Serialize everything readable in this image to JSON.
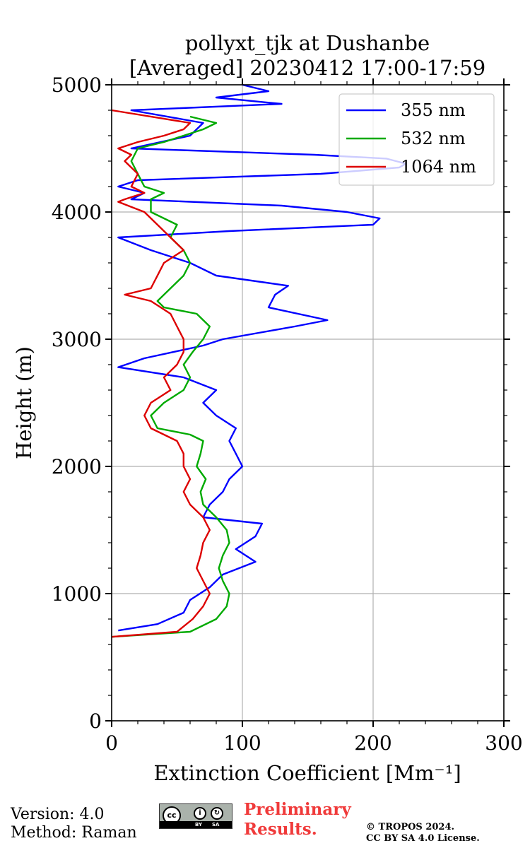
{
  "chart_data": {
    "type": "line",
    "title_line1": "pollyxt_tjk at Dushanbe",
    "title_line2": "[Averaged] 20230412 17:00-17:59",
    "xlabel": "Extinction Coefficient [Mm⁻¹]",
    "ylabel": "Height (m)",
    "xlim": [
      0,
      300
    ],
    "ylim": [
      0,
      5000
    ],
    "xticks": [
      0,
      100,
      200,
      300
    ],
    "yticks": [
      0,
      1000,
      2000,
      3000,
      4000,
      5000
    ],
    "grid": true,
    "legend_position": "top-right",
    "series": [
      {
        "name": "355 nm",
        "color": "#0000ff",
        "heights": [
          710,
          760,
          850,
          950,
          1050,
          1150,
          1250,
          1350,
          1450,
          1550,
          1600,
          1700,
          1800,
          1900,
          2000,
          2100,
          2200,
          2300,
          2400,
          2500,
          2600,
          2700,
          2780,
          2850,
          2950,
          3000,
          3100,
          3150,
          3250,
          3350,
          3420,
          3500,
          3600,
          3700,
          3800,
          3850,
          3900,
          3950,
          4000,
          4050,
          4100,
          4150,
          4200,
          4250,
          4300,
          4350,
          4380,
          4420,
          4450,
          4500,
          4600,
          4700,
          4800,
          4850,
          4900,
          4950,
          5000
        ],
        "values": [
          5,
          35,
          55,
          60,
          75,
          85,
          110,
          95,
          110,
          115,
          70,
          75,
          85,
          90,
          100,
          95,
          90,
          95,
          80,
          70,
          80,
          55,
          5,
          25,
          70,
          85,
          140,
          165,
          120,
          125,
          135,
          80,
          60,
          30,
          5,
          90,
          200,
          205,
          180,
          130,
          15,
          25,
          5,
          20,
          160,
          220,
          225,
          210,
          155,
          15,
          60,
          70,
          15,
          130,
          80,
          120,
          100
        ]
      },
      {
        "name": "532 nm",
        "color": "#00aa00",
        "heights": [
          660,
          700,
          800,
          900,
          1000,
          1100,
          1200,
          1300,
          1400,
          1500,
          1600,
          1700,
          1800,
          1900,
          2000,
          2100,
          2200,
          2250,
          2300,
          2400,
          2500,
          2600,
          2700,
          2800,
          2900,
          3000,
          3100,
          3200,
          3250,
          3300,
          3400,
          3500,
          3600,
          3700,
          3800,
          3900,
          4000,
          4100,
          4150,
          4200,
          4300,
          4400,
          4500,
          4550,
          4600,
          4650,
          4700,
          4750
        ],
        "values": [
          0,
          60,
          80,
          88,
          90,
          85,
          82,
          85,
          90,
          88,
          80,
          70,
          68,
          72,
          65,
          68,
          70,
          60,
          35,
          30,
          40,
          55,
          60,
          55,
          62,
          70,
          75,
          65,
          40,
          35,
          45,
          55,
          60,
          55,
          45,
          50,
          30,
          30,
          40,
          25,
          20,
          15,
          20,
          40,
          55,
          70,
          80,
          60
        ]
      },
      {
        "name": "1064 nm",
        "color": "#dd0000",
        "heights": [
          660,
          700,
          800,
          900,
          1000,
          1100,
          1200,
          1300,
          1400,
          1500,
          1600,
          1700,
          1800,
          1900,
          2000,
          2100,
          2200,
          2300,
          2400,
          2500,
          2600,
          2700,
          2800,
          2900,
          3000,
          3100,
          3200,
          3300,
          3350,
          3400,
          3500,
          3600,
          3700,
          3800,
          3900,
          4000,
          4080,
          4100,
          4150,
          4200,
          4300,
          4400,
          4450,
          4500,
          4550,
          4600,
          4650,
          4700,
          4800
        ],
        "values": [
          0,
          50,
          62,
          70,
          75,
          70,
          65,
          68,
          70,
          75,
          70,
          60,
          55,
          60,
          55,
          55,
          50,
          30,
          25,
          30,
          45,
          40,
          50,
          55,
          55,
          50,
          45,
          30,
          10,
          30,
          35,
          40,
          55,
          45,
          35,
          25,
          5,
          10,
          25,
          15,
          20,
          10,
          15,
          5,
          20,
          40,
          55,
          60,
          0
        ]
      }
    ]
  },
  "footer": {
    "version": "Version: 4.0",
    "method": "Method: Raman",
    "prelim_line1": "Preliminary",
    "prelim_line2": "Results.",
    "copyright_line1": "© TROPOS 2024.",
    "copyright_line2": "CC BY SA 4.0 License.",
    "cc_text": "cc",
    "cc_by": "BY",
    "cc_sa": "SA"
  }
}
